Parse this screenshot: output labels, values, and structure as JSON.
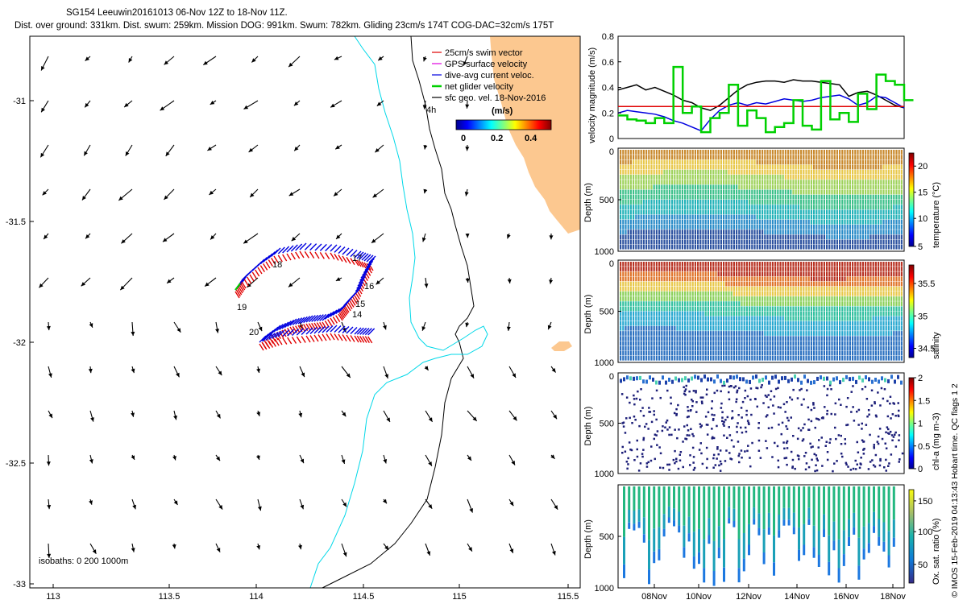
{
  "header": {
    "line1": "SG154 Leeuwin20161013 06-Nov 12Z to 18-Nov 11Z.",
    "line2": "Dist. over ground: 331km. Dist. swum: 259km. Mission DOG: 991km. Swum: 782km. Gliding 23cm/s 174T COG-DAC=32cm/s 175T"
  },
  "map": {
    "legend": [
      {
        "label": "25cm/s swim vector",
        "color": "#e00000"
      },
      {
        "label": "GPS surface velocity",
        "color": "#e000e0"
      },
      {
        "label": "dive-avg current veloc.",
        "color": "#0000e0"
      },
      {
        "label": "net glider velocity",
        "color": "#00d000"
      },
      {
        "label": "sfc geo. vel. 18-Nov-2016",
        "color": "#000000"
      }
    ],
    "colorbar_title": "(m/s)",
    "colorbar_ticks": [
      "0",
      "0.2",
      "0.4"
    ],
    "x_ticks": [
      "113",
      "113.5",
      "114",
      "114.5",
      "115",
      "115.5"
    ],
    "y_ticks": [
      "-31",
      "-31.5",
      "-32",
      "-32.5",
      "-33"
    ],
    "isobaths_label": "isobaths: 0   200  1000m",
    "day_labels": [
      "4h",
      "18",
      "17",
      "16",
      "15",
      "14",
      "19",
      "20"
    ],
    "colors": {
      "land": "#fcc890",
      "isobath_shallow": "#00d8e8",
      "isobath_deep": "#000000"
    }
  },
  "chart_data": [
    {
      "type": "line",
      "ylabel": "velocity magnitude (m/s)",
      "ylim": [
        0,
        0.8
      ],
      "y_ticks": [
        "0",
        "0.2",
        "0.4",
        "0.6",
        "0.8"
      ],
      "series": [
        {
          "color": "#000000",
          "values": [
            0.38,
            0.4,
            0.42,
            0.38,
            0.4,
            0.37,
            0.34,
            0.3,
            0.28,
            0.24,
            0.22,
            0.26,
            0.32,
            0.38,
            0.42,
            0.44,
            0.45,
            0.45,
            0.44,
            0.46,
            0.45,
            0.45,
            0.44,
            0.43,
            0.42,
            0.33,
            0.36,
            0.37,
            0.34,
            0.3,
            0.26,
            0.24
          ]
        },
        {
          "color": "#0000e0",
          "values": [
            0.2,
            0.22,
            0.21,
            0.2,
            0.19,
            0.17,
            0.14,
            0.12,
            0.09,
            0.06,
            0.15,
            0.22,
            0.26,
            0.28,
            0.26,
            0.28,
            0.27,
            0.29,
            0.31,
            0.3,
            0.29,
            0.3,
            0.32,
            0.33,
            0.34,
            0.31,
            0.26,
            0.28,
            0.33,
            0.32,
            0.28,
            0.24
          ]
        },
        {
          "color": "#e00000",
          "values": [
            0.25,
            0.25,
            0.25,
            0.25,
            0.25,
            0.25,
            0.25,
            0.25,
            0.25,
            0.25,
            0.25,
            0.25,
            0.25,
            0.25,
            0.25,
            0.25,
            0.25,
            0.25,
            0.25,
            0.25,
            0.25,
            0.25,
            0.25,
            0.25,
            0.25,
            0.25,
            0.25,
            0.25,
            0.25,
            0.25,
            0.25,
            0.25
          ]
        },
        {
          "color": "#00d000",
          "values": [
            0.18,
            0.15,
            0.14,
            0.12,
            0.16,
            0.12,
            0.56,
            0.2,
            0.25,
            0.05,
            0.16,
            0.2,
            0.42,
            0.1,
            0.22,
            0.16,
            0.05,
            0.09,
            0.12,
            0.3,
            0.1,
            0.07,
            0.45,
            0.15,
            0.2,
            0.13,
            0.35,
            0.23,
            0.5,
            0.45,
            0.42,
            0.3
          ]
        }
      ]
    },
    {
      "type": "heatmap",
      "ylabel": "Depth (m)",
      "ylim": [
        0,
        1000
      ],
      "y_ticks": [
        "0",
        "500",
        "1000"
      ],
      "colorbar_label": "temperature (°C)",
      "colorbar_ticks": [
        "5",
        "10",
        "15",
        "20"
      ]
    },
    {
      "type": "heatmap",
      "ylabel": "Depth (m)",
      "ylim": [
        0,
        1000
      ],
      "y_ticks": [
        "0",
        "500",
        "1000"
      ],
      "colorbar_label": "salinity",
      "colorbar_ticks": [
        "34.5",
        "35",
        "35.5"
      ]
    },
    {
      "type": "scatter",
      "ylabel": "Depth (m)",
      "ylim": [
        0,
        1000
      ],
      "y_ticks": [
        "0",
        "500",
        "1000"
      ],
      "colorbar_label": "chl-a (mg m-3)",
      "colorbar_ticks": [
        "0",
        "0.5",
        "1",
        "1.5",
        "2"
      ]
    },
    {
      "type": "scatter",
      "ylabel": "Depth (m)",
      "ylim": [
        0,
        1000
      ],
      "y_ticks": [
        "500",
        "1000"
      ],
      "colorbar_label": "Ox. sat. ratio (%)",
      "colorbar_ticks": [
        "50",
        "100",
        "150"
      ],
      "x_ticks": [
        "08Nov",
        "10Nov",
        "12Nov",
        "14Nov",
        "16Nov",
        "18Nov"
      ]
    }
  ],
  "footer": {
    "stamp": "© IMOS 15-Feb-2019 04:13:43 Hobart time. QC flags 1  2"
  }
}
